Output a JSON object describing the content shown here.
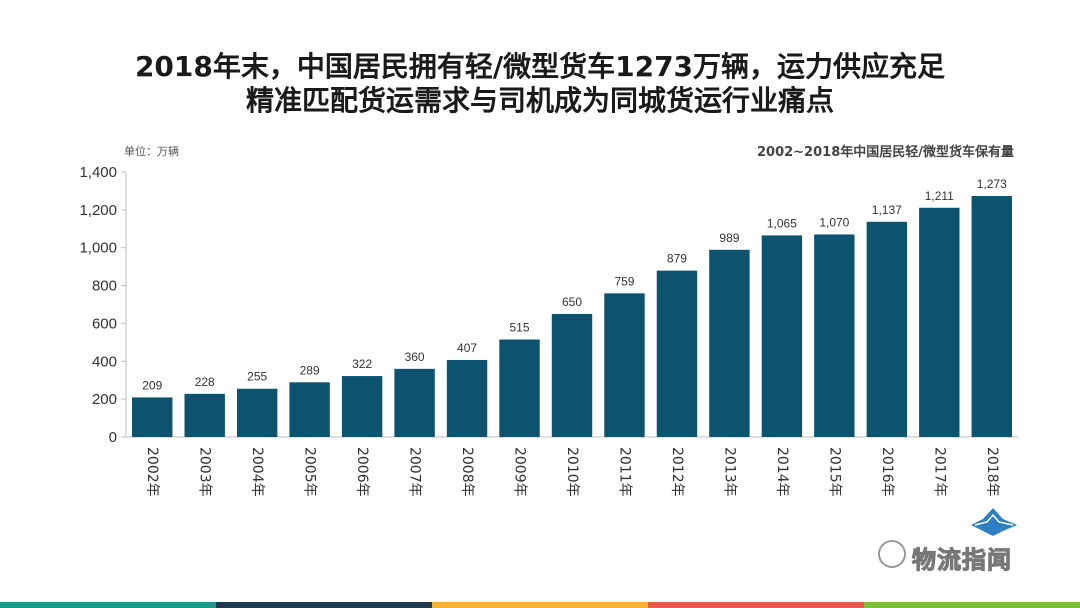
{
  "header": {
    "line1": "2018年末，中国居民拥有轻/微型货车1273万辆，运力供应充足",
    "line2": "精准匹配货运需求与司机成为同城货运行业痛点"
  },
  "unit_label": "单位：万辆",
  "chart_data": {
    "type": "bar",
    "title": "2002~2018年中国居民轻/微型货车保有量",
    "categories": [
      "2002年",
      "2003年",
      "2004年",
      "2005年",
      "2006年",
      "2007年",
      "2008年",
      "2009年",
      "2010年",
      "2011年",
      "2012年",
      "2013年",
      "2014年",
      "2015年",
      "2016年",
      "2017年",
      "2018年"
    ],
    "values": [
      209,
      228,
      255,
      289,
      322,
      360,
      407,
      515,
      650,
      759,
      879,
      989,
      1065,
      1070,
      1137,
      1211,
      1273
    ],
    "data_labels": [
      "209",
      "228",
      "255",
      "289",
      "322",
      "360",
      "407",
      "515",
      "650",
      "759",
      "879",
      "989",
      "1,065",
      "1,070",
      "1,137",
      "1,211",
      "1,273"
    ],
    "ylim": [
      0,
      1400
    ],
    "yticks": [
      "0",
      "200",
      "400",
      "600",
      "800",
      "1,000",
      "1,200",
      "1,400"
    ],
    "ytick_values": [
      0,
      200,
      400,
      600,
      800,
      1000,
      1200,
      1400
    ],
    "bar_color": "#0d5370",
    "xlabel": "",
    "ylabel": ""
  },
  "watermark": {
    "text": "物流指闻"
  },
  "footer_colors": [
    "#1a9b8a",
    "#1f3a4d",
    "#f5b335",
    "#e65a4a",
    "#7bbf3a"
  ]
}
